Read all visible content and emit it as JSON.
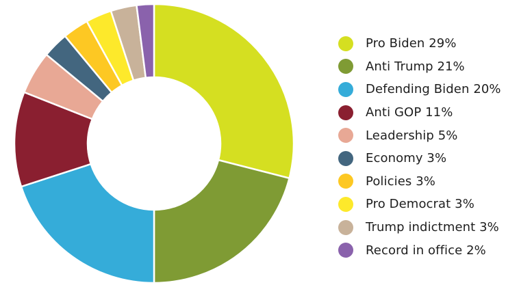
{
  "chart_data": {
    "type": "pie",
    "variant": "donut",
    "title": "",
    "legend_position": "right",
    "series": [
      {
        "label": "Pro Biden 29%",
        "name": "Pro Biden",
        "value": 29,
        "color": "#d5df21"
      },
      {
        "label": "Anti Trump 21%",
        "name": "Anti Trump",
        "value": 21,
        "color": "#7f9b34"
      },
      {
        "label": "Defending Biden 20%",
        "name": "Defending Biden",
        "value": 20,
        "color": "#35acd9"
      },
      {
        "label": "Anti GOP 11%",
        "name": "Anti GOP",
        "value": 11,
        "color": "#8a1f30"
      },
      {
        "label": "Leadership 5%",
        "name": "Leadership",
        "value": 5,
        "color": "#e8a895"
      },
      {
        "label": "Economy 3%",
        "name": "Economy",
        "value": 3,
        "color": "#43667f"
      },
      {
        "label": "Policies 3%",
        "name": "Policies",
        "value": 3,
        "color": "#fdc823"
      },
      {
        "label": "Pro Democrat 3%",
        "name": "Pro Democrat",
        "value": 3,
        "color": "#fde92b"
      },
      {
        "label": "Trump indictment 3%",
        "name": "Trump indictment",
        "value": 3,
        "color": "#c8b29a"
      },
      {
        "label": "Record in office 2%",
        "name": "Record in office",
        "value": 2,
        "color": "#8a62ac"
      }
    ]
  }
}
